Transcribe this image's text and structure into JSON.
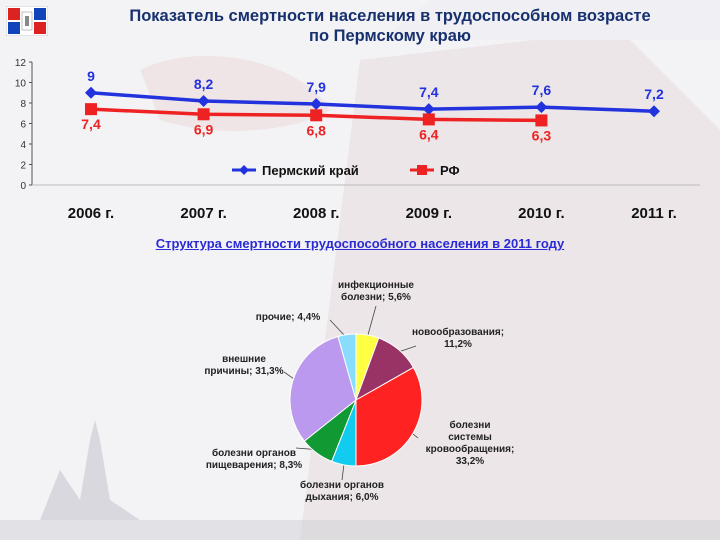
{
  "header": {
    "title_line1": "Показатель смертности населения в трудоспособном возрасте",
    "title_line2": "по Пермскому краю"
  },
  "structure_title": "Структура смертности трудоспособного населения в 2011 году",
  "chart_data": [
    {
      "type": "line",
      "categories": [
        "2006 г.",
        "2007 г.",
        "2008 г.",
        "2009 г.",
        "2010 г.",
        "2011 г."
      ],
      "ylim": [
        0,
        12
      ],
      "yticks": [
        "0",
        "2",
        "4",
        "6",
        "8",
        "10",
        "12"
      ],
      "grid": false,
      "legend_position": "bottom",
      "series": [
        {
          "name": "Пермский край",
          "color": "#2233dd",
          "marker": "diamond",
          "values": [
            9,
            8.2,
            7.9,
            7.4,
            7.6,
            7.2
          ],
          "labels": [
            "9",
            "8,2",
            "7,9",
            "7,4",
            "7,6",
            "7,2"
          ]
        },
        {
          "name": "РФ",
          "color": "#ee2222",
          "marker": "square",
          "values": [
            7.4,
            6.9,
            6.8,
            6.4,
            6.3,
            null
          ],
          "labels": [
            "7,4",
            "6,9",
            "6,8",
            "6,4",
            "6,3",
            null
          ]
        }
      ]
    },
    {
      "type": "pie",
      "slices": [
        {
          "label_lines": [
            "инфекционные",
            "болезни; 5,6%"
          ],
          "value": 5.6,
          "color": "#ffff44"
        },
        {
          "label_lines": [
            "новообразования;",
            "11,2%"
          ],
          "value": 11.2,
          "color": "#993366"
        },
        {
          "label_lines": [
            "болезни",
            "системы",
            "кровообращения;",
            "33,2%"
          ],
          "value": 33.2,
          "color": "#ff2222"
        },
        {
          "label_lines": [
            "болезни органов",
            "дыхания; 6,0%"
          ],
          "value": 6.0,
          "color": "#11ccee"
        },
        {
          "label_lines": [
            "болезни органов",
            "пищеварения; 8,3%"
          ],
          "value": 8.3,
          "color": "#119933"
        },
        {
          "label_lines": [
            "внешние",
            "причины; 31,3%"
          ],
          "value": 31.3,
          "color": "#bb99ee"
        },
        {
          "label_lines": [
            "прочие; 4,4%"
          ],
          "value": 4.4,
          "color": "#88ddff"
        }
      ]
    }
  ]
}
